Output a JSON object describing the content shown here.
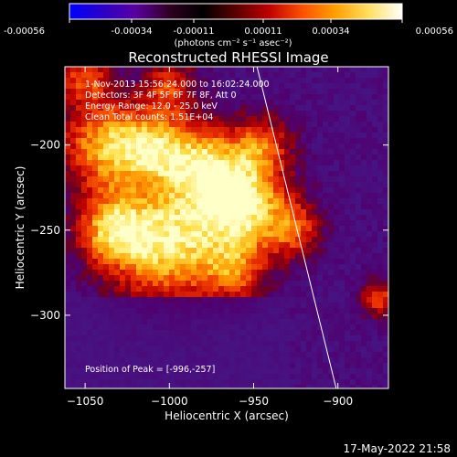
{
  "colorbar": {
    "tick_labels": [
      "-0.00056",
      "-0.00034",
      "-0.00011",
      "0.00011",
      "0.00034",
      "0.00056"
    ],
    "unit_label": "(photons cm⁻² s⁻¹ asec⁻²)",
    "range": [
      -0.00056,
      0.00056
    ],
    "stops": [
      "#0000ff",
      "#2a00c8",
      "#5a00a0",
      "#300020",
      "#000000",
      "#5a0000",
      "#c00000",
      "#ff5000",
      "#ffa000",
      "#ffe060",
      "#ffffff"
    ]
  },
  "chart_data": {
    "type": "heatmap",
    "title": "Reconstructed RHESSI Image",
    "xlabel": "Heliocentric X (arcsec)",
    "ylabel": "Heliocentric Y (arcsec)",
    "xlim": [
      -1062,
      -870
    ],
    "ylim": [
      -343,
      -154
    ],
    "x_ticks": [
      -1050,
      -1000,
      -950,
      -900
    ],
    "x_tick_labels": [
      "−1050",
      "−1000",
      "−950",
      "−900"
    ],
    "y_ticks": [
      -200,
      -250,
      -300
    ],
    "y_tick_labels": [
      "−200",
      "−250",
      "−300"
    ],
    "grid": false,
    "limb_line": [
      [
        -948,
        -154
      ],
      [
        -901,
        -343
      ]
    ],
    "peak": [
      -996,
      -257
    ],
    "annotations": [
      "1-Nov-2013 15:56:24.000 to 16:02:24.000",
      "Detectors: 3F 4F 5F 6F 7F 8F, Att 0",
      "Energy Range: 12.0 - 25.0 keV",
      "Clean     Total counts: 1.51E+04"
    ],
    "peak_label": "Position of Peak = [-996,-257]"
  },
  "footer_timestamp": "17-May-2022 21:58",
  "colors": {
    "background": "#000000",
    "text": "#ffffff"
  }
}
